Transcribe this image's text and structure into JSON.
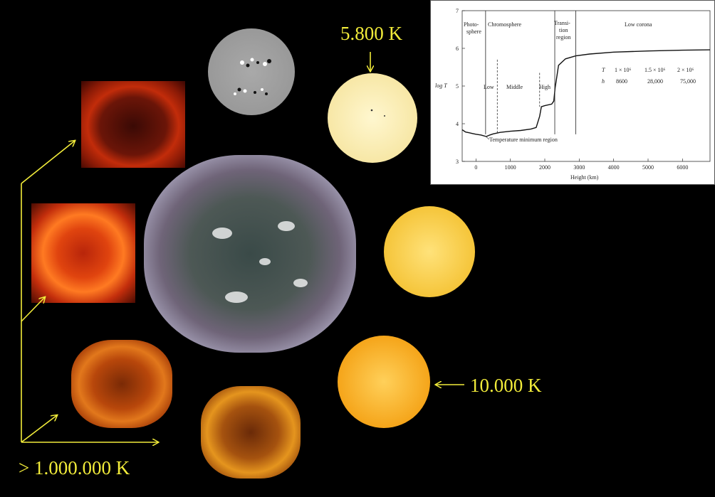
{
  "labels": {
    "photosphere_temp": "5.800 K",
    "chromosphere_temp": "10.000 K",
    "corona_temp": "> 1.000.000 K"
  },
  "colors": {
    "label": "#f2ec3a",
    "arrow": "#f2ec3a"
  },
  "chart_data": {
    "type": "line",
    "xlabel": "Height (km)",
    "ylabel": "log T",
    "xlim": [
      -400,
      6800
    ],
    "ylim": [
      3,
      7
    ],
    "xticks": [
      0,
      1000,
      2000,
      3000,
      4000,
      5000,
      6000
    ],
    "yticks": [
      3,
      4,
      5,
      6,
      7
    ],
    "series": [
      {
        "x": [
          -400,
          -300,
          -200,
          -100,
          0,
          150,
          300,
          400,
          500,
          700,
          1000,
          1300,
          1600,
          1750,
          1850,
          1900,
          2000,
          2200,
          2260,
          2300,
          2400,
          2600,
          2900,
          3300,
          4000,
          5000,
          6000,
          6800
        ],
        "y": [
          3.84,
          3.78,
          3.76,
          3.74,
          3.72,
          3.7,
          3.66,
          3.7,
          3.73,
          3.77,
          3.8,
          3.82,
          3.86,
          3.9,
          4.2,
          4.45,
          4.48,
          4.52,
          4.6,
          4.95,
          5.55,
          5.72,
          5.8,
          5.85,
          5.9,
          5.93,
          5.95,
          5.96
        ]
      }
    ],
    "region_labels": {
      "photosphere": "Photo-\nsphere",
      "chromosphere": "Chromosphere",
      "transition": "Transi-\ntion\nregion",
      "low_corona": "Low corona",
      "low": "Low",
      "middle": "Middle",
      "high": "High"
    },
    "annotation": "Temperature minimum region",
    "table": {
      "row_labels": [
        "T",
        "h"
      ],
      "T": [
        "1 × 10⁶",
        "1.5 × 10⁶",
        "2 × 10⁶"
      ],
      "h": [
        "8600",
        "28,000",
        "75,000"
      ]
    }
  }
}
